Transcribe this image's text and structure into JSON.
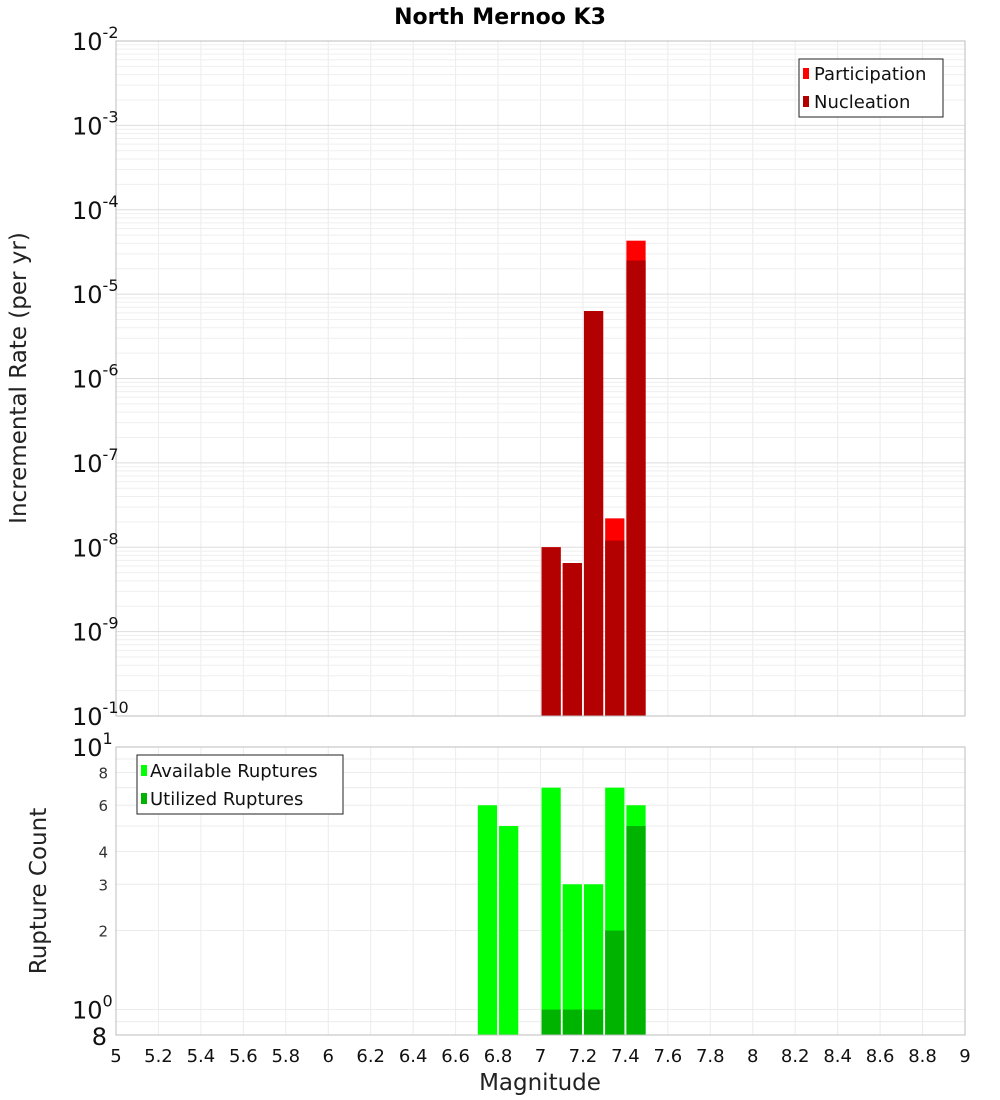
{
  "chart_data": [
    {
      "panel": "top",
      "type": "bar",
      "title": "North Mernoo K3",
      "xlabel": "Magnitude",
      "ylabel": "Incremental Rate (per yr)",
      "yscale": "log",
      "xlim": [
        5,
        9
      ],
      "ylim": [
        1e-10,
        0.01
      ],
      "bin_width": 0.1,
      "y_tick_labels": [
        {
          "base": "10",
          "exp": "-2",
          "value": 0.01
        },
        {
          "base": "10",
          "exp": "-3",
          "value": 0.001
        },
        {
          "base": "10",
          "exp": "-4",
          "value": 0.0001
        },
        {
          "base": "10",
          "exp": "-5",
          "value": 1e-05
        },
        {
          "base": "10",
          "exp": "-6",
          "value": 1e-06
        },
        {
          "base": "10",
          "exp": "-7",
          "value": 1e-07
        },
        {
          "base": "10",
          "exp": "-8",
          "value": 1e-08
        },
        {
          "base": "10",
          "exp": "-9",
          "value": 1e-09
        },
        {
          "base": "10",
          "exp": "-10",
          "value": 1e-10
        }
      ],
      "legend": {
        "position": "top-right",
        "entries": [
          {
            "label": "Participation",
            "color": "#ff0000"
          },
          {
            "label": "Nucleation",
            "color": "#b30000"
          }
        ]
      },
      "series": [
        {
          "name": "Participation",
          "color": "#ff0000",
          "x": [
            7.05,
            7.15,
            7.25,
            7.35,
            7.45
          ],
          "values": [
            1e-08,
            6.5e-09,
            6.3e-06,
            2.2e-08,
            4.3e-05
          ]
        },
        {
          "name": "Nucleation",
          "color": "#b30000",
          "x": [
            7.05,
            7.15,
            7.25,
            7.35,
            7.45
          ],
          "values": [
            1e-08,
            6.5e-09,
            6.3e-06,
            1.2e-08,
            2.5e-05
          ]
        }
      ]
    },
    {
      "panel": "bottom",
      "type": "bar",
      "xlabel": "Magnitude",
      "ylabel": "Rupture Count",
      "yscale": "log",
      "xlim": [
        5,
        9
      ],
      "ylim": [
        0.8,
        10
      ],
      "bin_width": 0.1,
      "y_tick_labels": [
        {
          "label": "8",
          "value": 8,
          "size": "small"
        },
        {
          "label": "6",
          "value": 6,
          "size": "small"
        },
        {
          "label": "4",
          "value": 4,
          "size": "small"
        },
        {
          "label": "3",
          "value": 3,
          "size": "small"
        },
        {
          "label": "2",
          "value": 2,
          "size": "small"
        }
      ],
      "y_major_labels": [
        {
          "base": "10",
          "exp": "1",
          "value": 10
        },
        {
          "base": "10",
          "exp": "0",
          "value": 1
        }
      ],
      "y_bottom_label": {
        "label": "8",
        "value": 0.8
      },
      "legend": {
        "position": "top-left",
        "entries": [
          {
            "label": "Available Ruptures",
            "color": "#00ff00"
          },
          {
            "label": "Utilized Ruptures",
            "color": "#00b300"
          }
        ]
      },
      "series": [
        {
          "name": "Available Ruptures",
          "color": "#00ff00",
          "x": [
            6.75,
            6.85,
            7.05,
            7.15,
            7.25,
            7.35,
            7.45
          ],
          "values": [
            6,
            5,
            7,
            3,
            3,
            7,
            6
          ]
        },
        {
          "name": "Utilized Ruptures",
          "color": "#00b300",
          "x": [
            7.05,
            7.15,
            7.25,
            7.35,
            7.45
          ],
          "values": [
            1,
            1,
            1,
            2,
            5
          ]
        }
      ]
    }
  ],
  "x_tick_labels": [
    "5",
    "5.2",
    "5.4",
    "5.6",
    "5.8",
    "6",
    "6.2",
    "6.4",
    "6.6",
    "6.8",
    "7",
    "7.2",
    "7.4",
    "7.6",
    "7.8",
    "8",
    "8.2",
    "8.4",
    "8.6",
    "8.8",
    "9"
  ],
  "x_tick_values": [
    5,
    5.2,
    5.4,
    5.6,
    5.8,
    6,
    6.2,
    6.4,
    6.6,
    6.8,
    7,
    7.2,
    7.4,
    7.6,
    7.8,
    8,
    8.2,
    8.4,
    8.6,
    8.8,
    9
  ]
}
